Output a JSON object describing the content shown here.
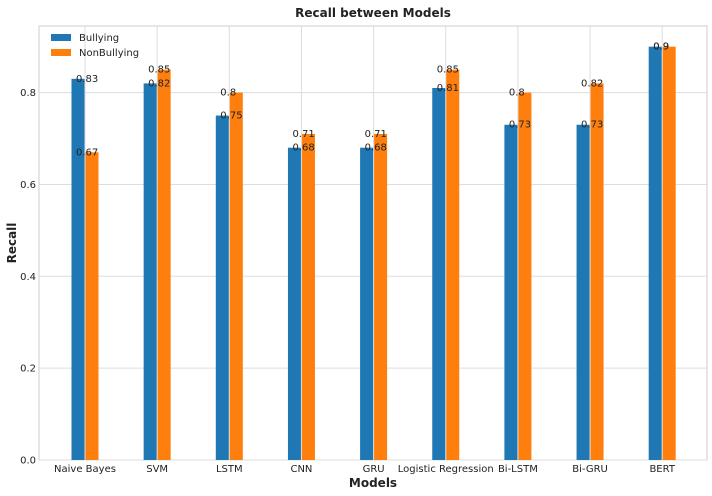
{
  "chart_data": {
    "type": "bar",
    "title": "Recall between Models",
    "xlabel": "Models",
    "ylabel": "Recall",
    "ylim": [
      0,
      0.945
    ],
    "yticks": [
      0.0,
      0.2,
      0.4,
      0.6,
      0.8
    ],
    "ytick_labels": [
      "0.0",
      "0.2",
      "0.4",
      "0.6",
      "0.8"
    ],
    "grid": true,
    "legend_position": "top-left",
    "categories": [
      "Naive Bayes",
      "SVM",
      "LSTM",
      "CNN",
      "GRU",
      "Logistic Regression",
      "Bi-LSTM",
      "Bi-GRU",
      "BERT"
    ],
    "series": [
      {
        "name": "Bullying",
        "color": "#1f77b4",
        "values": [
          0.83,
          0.82,
          0.75,
          0.68,
          0.68,
          0.81,
          0.73,
          0.73,
          0.9
        ],
        "labels": [
          "0.83",
          "0.82",
          "0.75",
          "0.68",
          "0.68",
          "0.81",
          "0.73",
          "0.73",
          "0.9"
        ]
      },
      {
        "name": "NonBullying",
        "color": "#ff7f0e",
        "values": [
          0.67,
          0.85,
          0.8,
          0.71,
          0.71,
          0.85,
          0.8,
          0.82,
          0.9
        ],
        "labels": [
          "0.67",
          "0.85",
          "0.8",
          "0.71",
          "0.71",
          "0.85",
          "0.8",
          "0.82",
          "0.9"
        ]
      }
    ]
  }
}
